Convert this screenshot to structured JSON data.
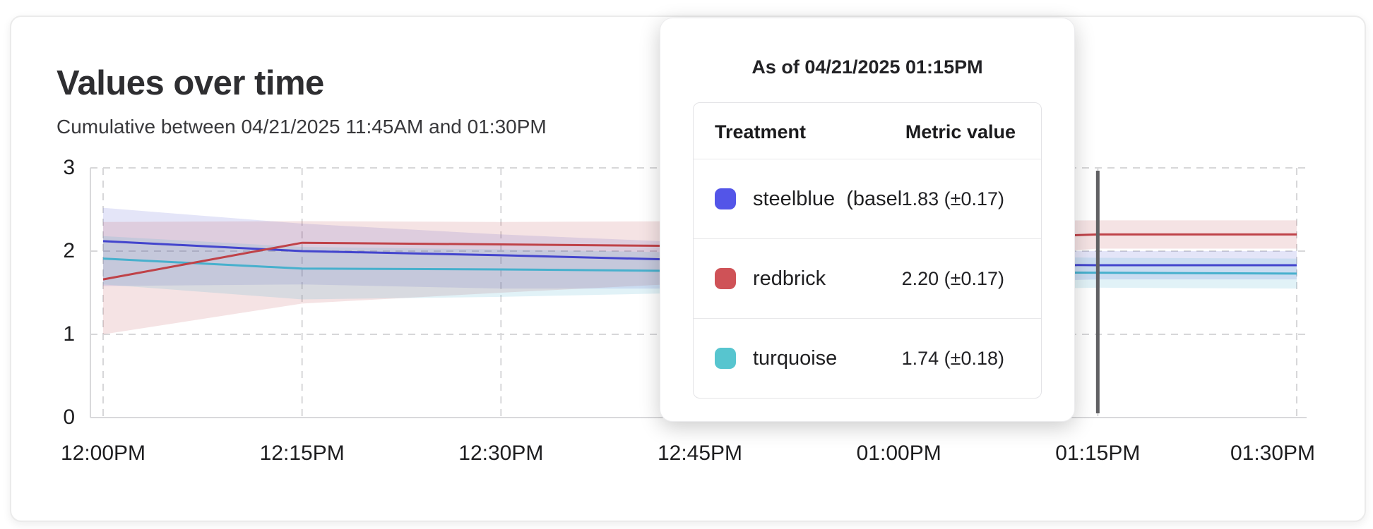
{
  "header": {
    "title": "Values over time",
    "subtitle": "Cumulative between 04/21/2025 11:45AM and 01:30PM"
  },
  "tooltip": {
    "title": "As of 04/21/2025 01:15PM",
    "columns": {
      "treatment": "Treatment",
      "metric": "Metric value"
    },
    "rows": [
      {
        "name": "steelblue  (baseli",
        "value": "1.83 (±0.17)",
        "swatch": "#5355e8"
      },
      {
        "name": "redbrick",
        "value": "2.20 (±0.17)",
        "swatch": "#cf5257"
      },
      {
        "name": "turquoise",
        "value": "1.74 (±0.18)",
        "swatch": "#57c5cf"
      }
    ]
  },
  "colors": {
    "grid": "#d7d7d9",
    "axis": "#d9d9db",
    "marker": "#606063",
    "tick_text": "#1d1d1f"
  },
  "chart_data": {
    "type": "line",
    "title": "Values over time",
    "xlabel": "",
    "ylabel": "",
    "x_ticks": [
      "12:00PM",
      "12:15PM",
      "12:30PM",
      "12:45PM",
      "01:00PM",
      "01:15PM",
      "01:30PM"
    ],
    "y_ticks": [
      0,
      1,
      2,
      3
    ],
    "ylim": [
      0,
      3
    ],
    "grid": "dashed",
    "legend_position": "tooltip",
    "hover_marker_x": "01:15PM",
    "series": [
      {
        "name": "steelblue (baseline)",
        "line_color": "#4345cd",
        "fill_opacity": 0.14,
        "values": [
          2.12,
          2.0,
          1.95,
          1.89,
          1.85,
          1.83,
          1.83
        ],
        "upper": [
          2.52,
          2.33,
          2.2,
          2.1,
          2.02,
          2.0,
          2.0
        ],
        "lower": [
          1.58,
          1.6,
          1.55,
          1.55,
          1.6,
          1.66,
          1.66
        ]
      },
      {
        "name": "redbrick",
        "line_color": "#bf4248",
        "fill_opacity": 0.15,
        "values": [
          1.66,
          2.1,
          2.08,
          2.06,
          2.12,
          2.2,
          2.2
        ],
        "upper": [
          2.35,
          2.36,
          2.35,
          2.36,
          2.36,
          2.37,
          2.37
        ],
        "lower": [
          1.0,
          1.37,
          1.5,
          1.62,
          1.85,
          2.03,
          2.03
        ]
      },
      {
        "name": "turquoise",
        "line_color": "#47b0cd",
        "fill_opacity": 0.16,
        "values": [
          1.91,
          1.79,
          1.78,
          1.76,
          1.75,
          1.74,
          1.73
        ],
        "upper": [
          2.18,
          2.05,
          2.02,
          1.98,
          1.95,
          1.92,
          1.91
        ],
        "lower": [
          1.6,
          1.42,
          1.45,
          1.5,
          1.52,
          1.56,
          1.55
        ]
      }
    ]
  }
}
